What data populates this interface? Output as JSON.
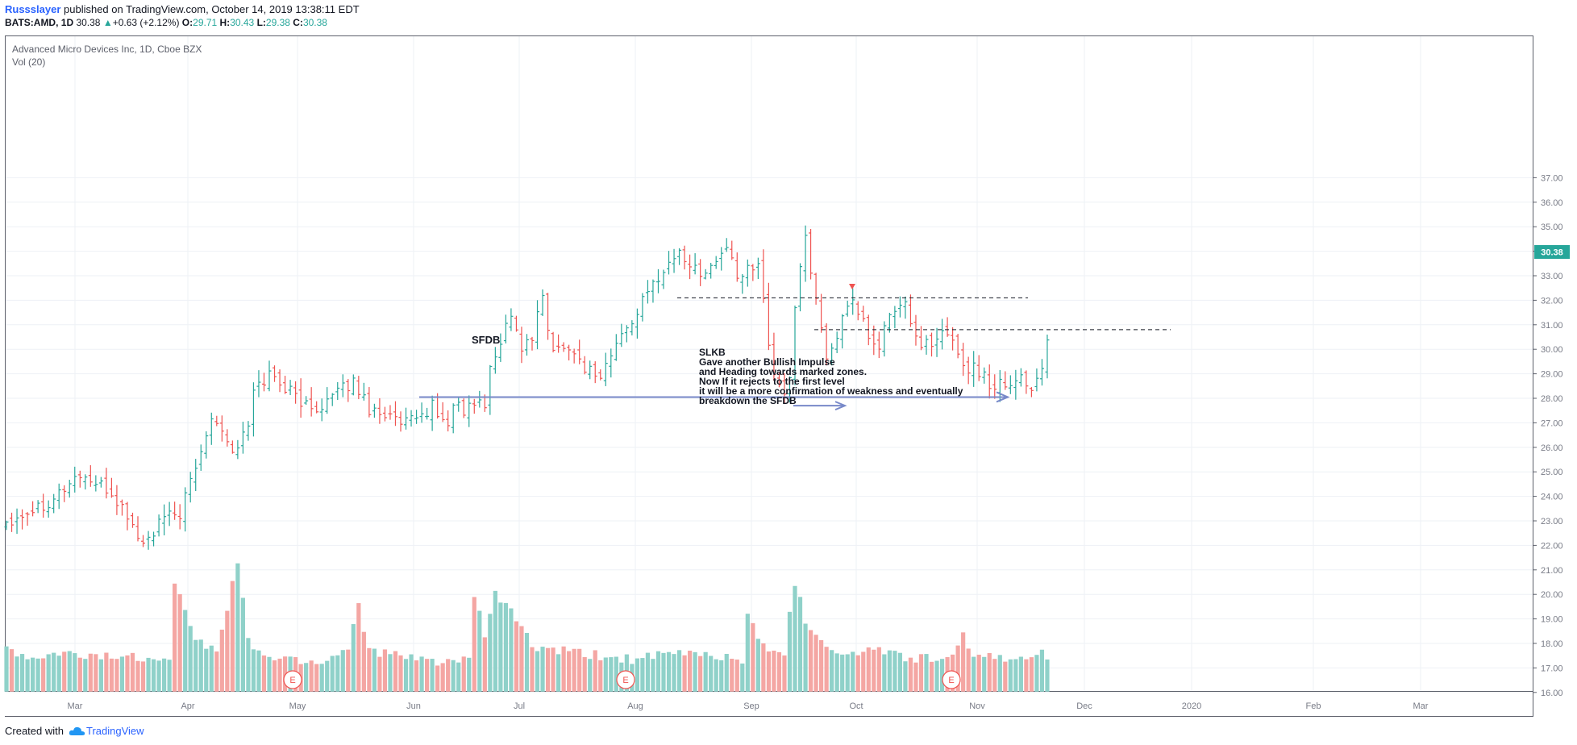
{
  "header": {
    "author": "Russslayer",
    "published": " published on TradingView.com, October 14, 2019 13:38:11 EDT",
    "symbol": "BATS:AMD, 1D",
    "last": "30.38",
    "change": "+0.63 (+2.12%)",
    "o_label": "O:",
    "o_val": "29.71",
    "h_label": "H:",
    "h_val": "30.43",
    "l_label": "L:",
    "l_val": "29.38",
    "c_label": "C:",
    "c_val": "30.38"
  },
  "legend": {
    "title": "Advanced Micro Devices Inc, 1D, Cboe BZX",
    "vol": "Vol (20)"
  },
  "price_badge": "30.38",
  "annotations": {
    "sfdb": "SFDB",
    "note": [
      "SLKB",
      "Gave another Bullish Impulse",
      "and Heading towards marked zones.",
      "Now If it rejects to the first level",
      "it will be a more confirmation of weakness and eventually",
      "breakdown the SFDB"
    ],
    "earnings_marker": "E"
  },
  "footer": {
    "created_with": "Created with",
    "brand": "TradingView"
  },
  "colors": {
    "up": "#26a69a",
    "down": "#ef5350",
    "vol_up": "#8fd1c9",
    "vol_down": "#f4a6a3",
    "grid": "#eef1f6",
    "axis": "#787b86",
    "arrow": "#7889c9"
  },
  "chart_data": {
    "type": "ohlc",
    "title": "Advanced Micro Devices Inc, 1D, Cboe BZX",
    "x_tick_labels": [
      "Mar",
      "Apr",
      "May",
      "Jun",
      "Jul",
      "Aug",
      "Sep",
      "Oct",
      "Nov",
      "Dec",
      "2020",
      "Feb",
      "Mar"
    ],
    "y_ticks": [
      "16.00",
      "17.00",
      "18.00",
      "19.00",
      "20.00",
      "21.00",
      "22.00",
      "23.00",
      "24.00",
      "25.00",
      "26.00",
      "27.00",
      "28.00",
      "29.00",
      "30.00",
      "31.00",
      "32.00",
      "33.00",
      "34.00",
      "35.00",
      "36.00",
      "37.00"
    ],
    "ylim": [
      16,
      37.2
    ],
    "last_price": 30.38,
    "close_path": [
      [
        0,
        23.0
      ],
      [
        8,
        23.8
      ],
      [
        14,
        24.9
      ],
      [
        20,
        24.1
      ],
      [
        23,
        23.2
      ],
      [
        26,
        22.0
      ],
      [
        30,
        23.1
      ],
      [
        33,
        23.3
      ],
      [
        37,
        25.8
      ],
      [
        39,
        27.4
      ],
      [
        41,
        26.8
      ],
      [
        43,
        25.8
      ],
      [
        46,
        26.8
      ],
      [
        47,
        28.3
      ],
      [
        50,
        29.0
      ],
      [
        54,
        28.3
      ],
      [
        58,
        27.5
      ],
      [
        63,
        28.2
      ],
      [
        66,
        28.7
      ],
      [
        69,
        27.6
      ],
      [
        72,
        27.4
      ],
      [
        75,
        26.9
      ],
      [
        78,
        27.1
      ],
      [
        81,
        27.7
      ],
      [
        84,
        26.8
      ],
      [
        85,
        27.9
      ],
      [
        87,
        27.4
      ],
      [
        90,
        28.0
      ],
      [
        91,
        27.5
      ],
      [
        92,
        29.3
      ],
      [
        94,
        30.4
      ],
      [
        96,
        31.5
      ],
      [
        98,
        30.0
      ],
      [
        100,
        30.4
      ],
      [
        102,
        32.2
      ],
      [
        104,
        29.8
      ],
      [
        106,
        30.3
      ],
      [
        110,
        29.3
      ],
      [
        113,
        28.9
      ],
      [
        116,
        30.2
      ],
      [
        119,
        31.2
      ],
      [
        124,
        33.0
      ],
      [
        128,
        34.0
      ],
      [
        131,
        33.2
      ],
      [
        134,
        33.3
      ],
      [
        137,
        34.2
      ],
      [
        139,
        32.8
      ],
      [
        143,
        33.7
      ],
      [
        146,
        28.7
      ],
      [
        148,
        28.3
      ],
      [
        149,
        28.9
      ],
      [
        150,
        31.8
      ],
      [
        152,
        34.5
      ],
      [
        154,
        32.1
      ],
      [
        156,
        29.6
      ],
      [
        159,
        31.2
      ],
      [
        161,
        31.8
      ],
      [
        163,
        31.1
      ],
      [
        165,
        30.0
      ],
      [
        166,
        30.2
      ],
      [
        168,
        31.4
      ],
      [
        171,
        31.8
      ],
      [
        173,
        30.5
      ],
      [
        176,
        30.0
      ],
      [
        178,
        30.6
      ],
      [
        180,
        30.5
      ],
      [
        182,
        29.3
      ],
      [
        184,
        29.2
      ],
      [
        186,
        29.0
      ],
      [
        188,
        28.3
      ],
      [
        189,
        28.9
      ],
      [
        191,
        28.5
      ],
      [
        193,
        29.0
      ],
      [
        195,
        28.3
      ],
      [
        196,
        28.8
      ],
      [
        197,
        29.4
      ],
      [
        198,
        30.38
      ]
    ],
    "volume_path": [
      [
        0,
        17.7
      ],
      [
        5,
        17.3
      ],
      [
        10,
        17.5
      ],
      [
        25,
        17.4
      ],
      [
        31,
        17.5
      ],
      [
        32,
        20.2
      ],
      [
        34,
        19.5
      ],
      [
        36,
        18.1
      ],
      [
        40,
        17.6
      ],
      [
        44,
        21.3
      ],
      [
        46,
        18.0
      ],
      [
        50,
        17.4
      ],
      [
        60,
        17.2
      ],
      [
        65,
        17.8
      ],
      [
        67,
        19.6
      ],
      [
        69,
        17.7
      ],
      [
        77,
        17.3
      ],
      [
        88,
        17.2
      ],
      [
        89,
        19.9
      ],
      [
        91,
        18.3
      ],
      [
        93,
        19.9
      ],
      [
        96,
        19.4
      ],
      [
        100,
        17.8
      ],
      [
        110,
        17.5
      ],
      [
        120,
        17.3
      ],
      [
        130,
        17.6
      ],
      [
        140,
        17.3
      ],
      [
        141,
        19.2
      ],
      [
        143,
        18.0
      ],
      [
        148,
        17.6
      ],
      [
        150,
        20.5
      ],
      [
        152,
        18.9
      ],
      [
        155,
        18.1
      ],
      [
        160,
        17.4
      ],
      [
        165,
        17.8
      ],
      [
        170,
        17.4
      ],
      [
        180,
        17.3
      ],
      [
        182,
        18.2
      ],
      [
        184,
        17.6
      ],
      [
        190,
        17.2
      ],
      [
        197,
        17.7
      ],
      [
        198,
        17.3
      ]
    ],
    "levels": [
      {
        "name": "first level",
        "value": 32.1,
        "style": "dashed"
      },
      {
        "name": "second level",
        "value": 30.8,
        "style": "dashed"
      },
      {
        "name": "SFDB",
        "value": 28.05,
        "style": "arrow"
      }
    ],
    "earnings_markers": [
      "May",
      "Aug",
      "Oct-Nov"
    ],
    "grid": true
  }
}
